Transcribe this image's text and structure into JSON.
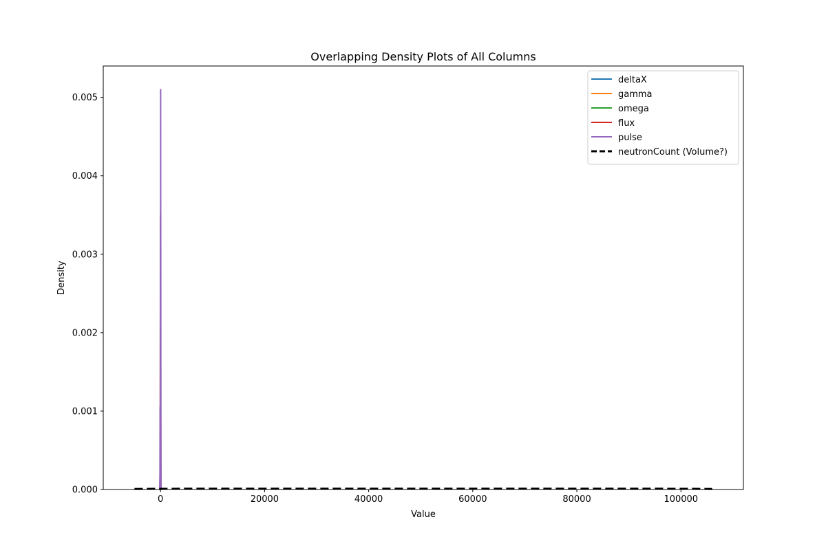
{
  "chart_data": {
    "type": "line",
    "title": "Overlapping Density Plots of All Columns",
    "xlabel": "Value",
    "ylabel": "Density",
    "xlim": [
      -11000,
      112000
    ],
    "ylim": [
      0,
      0.0054
    ],
    "xticks": [
      0,
      20000,
      40000,
      60000,
      80000,
      100000
    ],
    "yticks": [
      0.0,
      0.001,
      0.002,
      0.003,
      0.004,
      0.005
    ],
    "xtick_labels": [
      "0",
      "20000",
      "40000",
      "60000",
      "80000",
      "100000"
    ],
    "ytick_labels": [
      "0.000",
      "0.001",
      "0.002",
      "0.003",
      "0.004",
      "0.005"
    ],
    "grid": false,
    "legend_position": "top-right",
    "series": [
      {
        "name": "deltaX",
        "color": "#1f77b4",
        "style": "solid",
        "x": [
          -250,
          -100,
          -40,
          -20,
          0,
          20,
          40,
          100,
          250
        ],
        "y": [
          0,
          0,
          5e-05,
          0.0002,
          0.0003,
          0.0002,
          5e-05,
          0,
          0
        ]
      },
      {
        "name": "gamma",
        "color": "#ff7f0e",
        "style": "solid",
        "x": [
          -250,
          -100,
          -40,
          -20,
          0,
          20,
          40,
          100,
          250
        ],
        "y": [
          0,
          0,
          0.0001,
          0.0003,
          0.0004,
          0.0003,
          0.0001,
          0,
          0
        ]
      },
      {
        "name": "omega",
        "color": "#2ca02c",
        "style": "solid",
        "x": [
          -250,
          -100,
          -30,
          0,
          30,
          60,
          100,
          250
        ],
        "y": [
          0,
          0,
          0.0004,
          0.0009,
          0.0012,
          0.0004,
          0,
          0
        ]
      },
      {
        "name": "flux",
        "color": "#d62728",
        "style": "solid",
        "x": [
          -250,
          -120,
          -60,
          -20,
          0,
          30,
          60,
          120,
          250
        ],
        "y": [
          0,
          0,
          0.0003,
          0.0025,
          0.0035,
          0.0018,
          0.0003,
          0,
          0
        ]
      },
      {
        "name": "pulse",
        "color": "#9467bd",
        "style": "solid",
        "x": [
          -250,
          -150,
          -110,
          -80,
          -60,
          -40,
          -20,
          -10,
          0,
          10,
          20,
          30,
          60,
          90,
          120,
          250
        ],
        "y": [
          0,
          0,
          0.0002,
          0.00105,
          0.0001,
          0.0009,
          0.00345,
          0.0003,
          0.0004,
          0.0015,
          0.0051,
          0.0051,
          0.0022,
          0.0004,
          0,
          0
        ]
      },
      {
        "name": "neutronCount (Volume?)",
        "color": "#000000",
        "style": "dashed",
        "x": [
          -5000,
          0,
          10000,
          20000,
          30000,
          40000,
          50000,
          60000,
          70000,
          80000,
          90000,
          100000,
          106000
        ],
        "y": [
          7e-06,
          9e-06,
          1e-05,
          1e-05,
          1e-05,
          1e-05,
          1e-05,
          1e-05,
          1e-05,
          1e-05,
          1e-05,
          9e-06,
          7e-06
        ]
      }
    ]
  }
}
